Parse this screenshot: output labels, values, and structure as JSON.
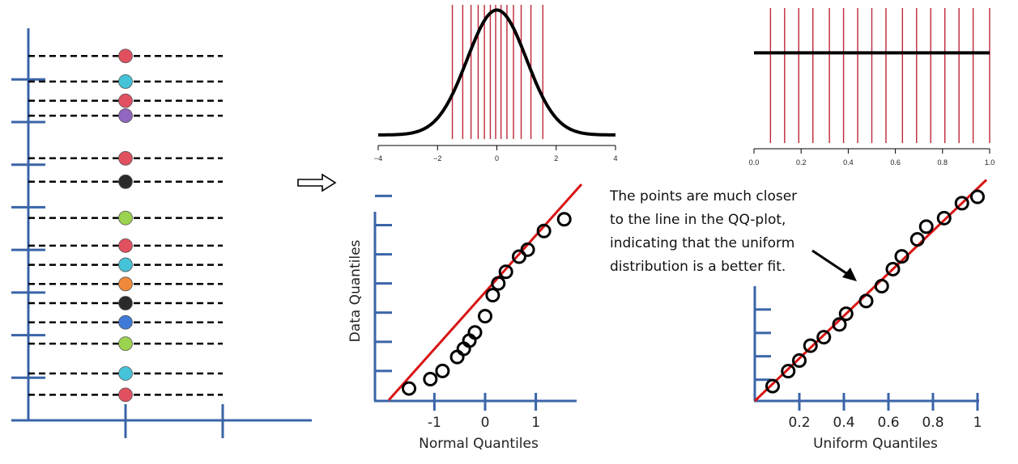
{
  "colors": {
    "axis_blue": "#3a64a8",
    "vline_red": "#c0263a",
    "fit_red": "#d81414",
    "curve_black": "#000000",
    "dash_black": "#000000"
  },
  "arrow_icon": "hollow-right-arrow-icon",
  "annotation": {
    "lines": [
      "The points are much closer",
      "to the line in the QQ-plot,",
      "indicating that the uniform",
      "distribution is a better fit."
    ]
  },
  "chart_data": [
    {
      "id": "dot-strip",
      "type": "scatter",
      "title": "",
      "xlabel": "",
      "ylabel": "",
      "grid": false,
      "y_ticks": [
        0,
        1,
        2,
        3,
        4,
        5,
        6,
        7,
        8
      ],
      "ylim": [
        0,
        9.2
      ],
      "x_ticks": [
        1,
        2
      ],
      "xlim": [
        0,
        3
      ],
      "dash_xrange": [
        0,
        2
      ],
      "points": [
        {
          "y": 8.55,
          "x": 1,
          "color": "#e0505f"
        },
        {
          "y": 7.95,
          "x": 1,
          "color": "#45c3d8"
        },
        {
          "y": 7.5,
          "x": 1,
          "color": "#e0505f"
        },
        {
          "y": 7.15,
          "x": 1,
          "color": "#9066c0"
        },
        {
          "y": 6.15,
          "x": 1,
          "color": "#e0505f"
        },
        {
          "y": 5.6,
          "x": 1,
          "color": "#2a2a2a"
        },
        {
          "y": 4.75,
          "x": 1,
          "color": "#9bd24e"
        },
        {
          "y": 4.1,
          "x": 1,
          "color": "#e0505f"
        },
        {
          "y": 3.65,
          "x": 1,
          "color": "#45c3d8"
        },
        {
          "y": 3.2,
          "x": 1,
          "color": "#f08a3a"
        },
        {
          "y": 2.75,
          "x": 1,
          "color": "#2a2a2a"
        },
        {
          "y": 2.3,
          "x": 1,
          "color": "#3e7ad6"
        },
        {
          "y": 1.8,
          "x": 1,
          "color": "#9bd24e"
        },
        {
          "y": 1.1,
          "x": 1,
          "color": "#45c3d8"
        },
        {
          "y": 0.6,
          "x": 1,
          "color": "#e0505f"
        }
      ]
    },
    {
      "id": "normal-density",
      "type": "line",
      "title": "",
      "xlabel": "",
      "ylabel": "",
      "grid": false,
      "xlim": [
        -4,
        4
      ],
      "ylim": [
        0,
        0.4
      ],
      "x_ticks": [
        -4,
        -2,
        0,
        2,
        4
      ],
      "curve": "normal pdf",
      "vlines": [
        -1.5,
        -1.15,
        -0.87,
        -0.63,
        -0.42,
        -0.22,
        -0.04,
        0.14,
        0.34,
        0.56,
        0.82,
        1.15,
        1.55
      ]
    },
    {
      "id": "uniform-density",
      "type": "line",
      "title": "",
      "xlabel": "",
      "ylabel": "",
      "grid": false,
      "xlim": [
        0,
        1
      ],
      "ylim": [
        0,
        1.5
      ],
      "x_ticks": [
        "0.0",
        "0.2",
        "0.4",
        "0.6",
        "0.8",
        "1.0"
      ],
      "curve": "uniform pdf",
      "vlines": [
        0.07,
        0.13,
        0.19,
        0.25,
        0.32,
        0.38,
        0.44,
        0.5,
        0.56,
        0.63,
        0.69,
        0.75,
        0.81,
        0.87,
        0.93,
        1.0
      ]
    },
    {
      "id": "normal-qq",
      "type": "scatter",
      "title": "",
      "xlabel": "Normal Quantiles",
      "ylabel": "Data Quantiles",
      "grid": false,
      "xlim": [
        -1.9,
        1.9
      ],
      "ylim": [
        -1.6,
        2.1
      ],
      "x_ticks": [
        "-1",
        "0",
        "1"
      ],
      "x_tick_values": [
        -1,
        0,
        1
      ],
      "y_tick_values": [
        -1.1,
        -0.6,
        -0.1,
        0.4,
        0.9,
        1.4,
        1.9
      ],
      "fit_line": [
        [
          -1.9,
          -1.6
        ],
        [
          1.9,
          2.1
        ]
      ],
      "x": [
        -1.5,
        -1.08,
        -0.84,
        -0.55,
        -0.42,
        -0.31,
        -0.2,
        0.0,
        0.15,
        0.26,
        0.41,
        0.67,
        0.84,
        1.16,
        1.56
      ],
      "y": [
        -1.4,
        -1.24,
        -1.1,
        -0.86,
        -0.72,
        -0.58,
        -0.44,
        -0.16,
        0.2,
        0.4,
        0.6,
        0.86,
        0.98,
        1.3,
        1.5
      ]
    },
    {
      "id": "uniform-qq",
      "type": "scatter",
      "title": "",
      "xlabel": "Uniform Quantiles",
      "ylabel": "",
      "grid": false,
      "xlim": [
        0,
        1
      ],
      "ylim": [
        0,
        1
      ],
      "x_ticks": [
        "0.2",
        "0.4",
        "0.6",
        "0.8",
        "1"
      ],
      "x_tick_values": [
        0.2,
        0.4,
        0.6,
        0.8,
        1.0
      ],
      "y_tick_values": [
        0.1,
        0.21,
        0.32,
        0.43
      ],
      "fit_line": [
        [
          0,
          0
        ],
        [
          1.04,
          1.04
        ]
      ],
      "x": [
        0.08,
        0.15,
        0.2,
        0.25,
        0.31,
        0.38,
        0.41,
        0.5,
        0.57,
        0.62,
        0.66,
        0.73,
        0.77,
        0.85,
        0.93,
        1.0
      ],
      "y": [
        0.07,
        0.14,
        0.19,
        0.26,
        0.3,
        0.36,
        0.41,
        0.47,
        0.54,
        0.62,
        0.68,
        0.76,
        0.82,
        0.86,
        0.93,
        0.96
      ]
    }
  ]
}
